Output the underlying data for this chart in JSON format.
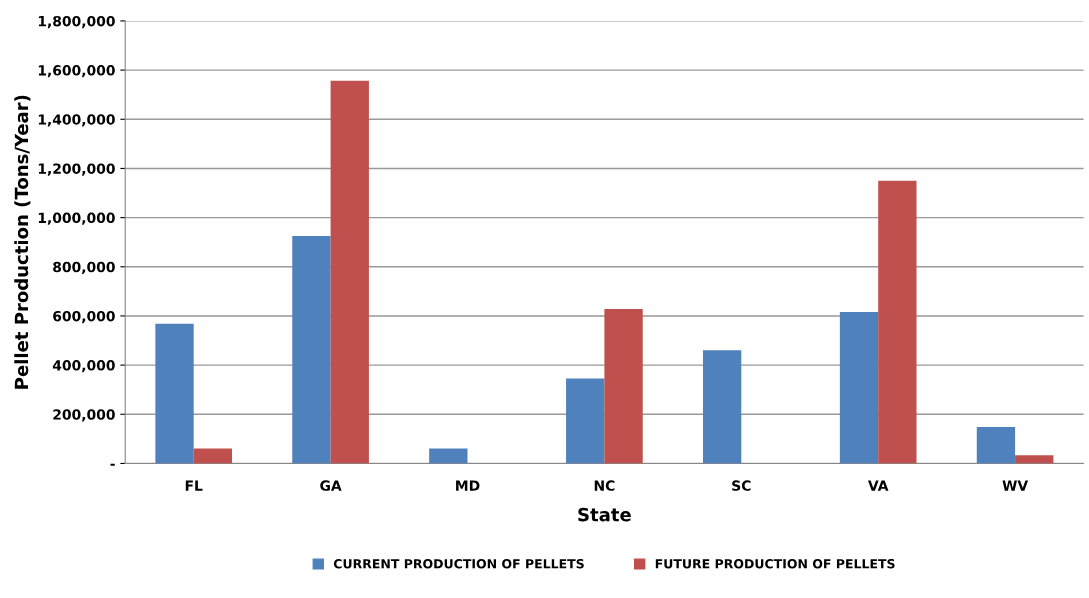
{
  "chart_data": {
    "type": "bar",
    "xlabel": "State",
    "ylabel": "Pellet Production (Tons/Year)",
    "categories": [
      "FL",
      "GA",
      "MD",
      "NC",
      "SC",
      "VA",
      "WV"
    ],
    "series": [
      {
        "name": "CURRENT PRODUCTION OF PELLETS",
        "color": "#4f81bd",
        "values": [
          568000,
          925000,
          61000,
          346000,
          460000,
          616000,
          148000
        ]
      },
      {
        "name": "FUTURE PRODUCTION OF PELLETS",
        "color": "#c0504d",
        "values": [
          61000,
          1557000,
          null,
          628000,
          null,
          1150000,
          33000
        ]
      }
    ],
    "ylim": [
      0,
      1800000
    ],
    "yticks": [
      {
        "value": 0,
        "label": "-"
      },
      {
        "value": 200000,
        "label": "200,000"
      },
      {
        "value": 400000,
        "label": "400,000"
      },
      {
        "value": 600000,
        "label": "600,000"
      },
      {
        "value": 800000,
        "label": "800,000"
      },
      {
        "value": 1000000,
        "label": "1,000,000"
      },
      {
        "value": 1200000,
        "label": "1,200,000"
      },
      {
        "value": 1400000,
        "label": "1,400,000"
      },
      {
        "value": 1600000,
        "label": "1,600,000"
      },
      {
        "value": 1800000,
        "label": "1,800,000"
      }
    ],
    "grid": "y",
    "legend": "bottom"
  }
}
